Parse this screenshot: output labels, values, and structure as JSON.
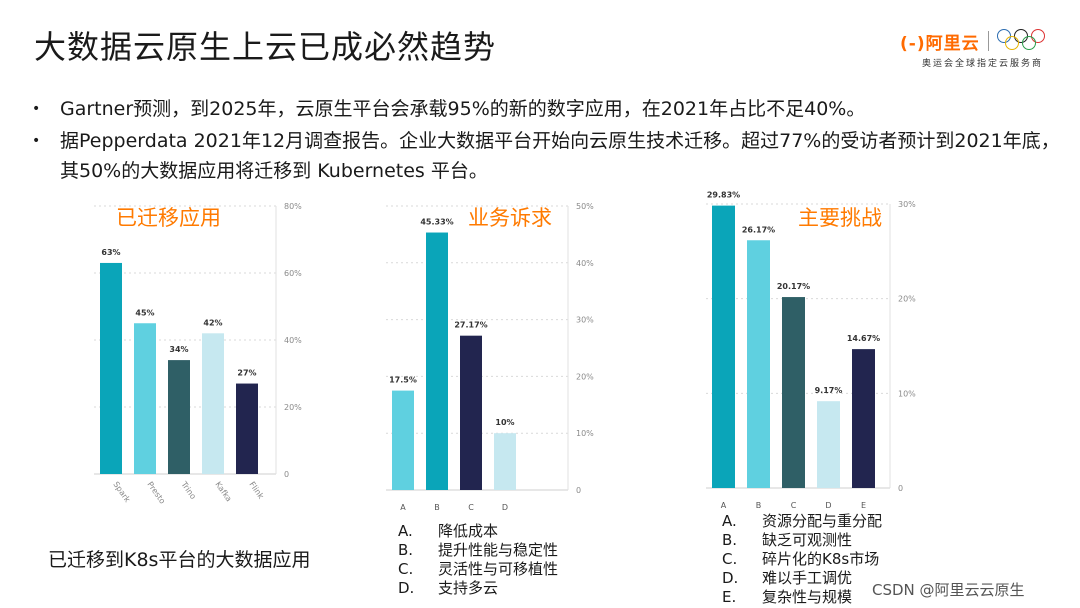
{
  "title": "大数据云原生上云已成必然趋势",
  "logo": {
    "brand": "阿里云",
    "subtitle": "奥运会全球指定云服务商"
  },
  "bullets": [
    "Gartner预测，到2025年，云原生平台会承载95%的新的数字应用，在2021年占比不足40%。",
    "据Pepperdata 2021年12月调查报告。企业大数据平台开始向云原生技术迁移。超过77%的受访者预计到2021年底，其50%的大数据应用将迁移到 Kubernetes 平台。"
  ],
  "chart_data": [
    {
      "type": "bar",
      "title": "已迁移应用",
      "categories": [
        "Spark",
        "Presto",
        "Trino",
        "Kafka",
        "Flink"
      ],
      "values": [
        63,
        45,
        34,
        42,
        27
      ],
      "labels": [
        "63%",
        "45%",
        "34%",
        "42%",
        "27%"
      ],
      "ticks": [
        "0",
        "20%",
        "40%",
        "60%",
        "80%"
      ],
      "ylim": [
        0,
        80
      ],
      "colors": [
        "#0aa5b9",
        "#5fd0e0",
        "#2f5f66",
        "#c6e8f0",
        "#22254f"
      ],
      "rotate_labels": true
    },
    {
      "type": "bar",
      "title": "业务诉求",
      "categories": [
        "A",
        "B",
        "C",
        "D"
      ],
      "values": [
        17.5,
        45.33,
        27.17,
        10
      ],
      "labels": [
        "17.5%",
        "45.33%",
        "27.17%",
        "10%"
      ],
      "ticks": [
        "0",
        "10%",
        "20%",
        "30%",
        "40%",
        "50%"
      ],
      "ylim": [
        0,
        50
      ],
      "colors": [
        "#5fd0e0",
        "#0aa5b9",
        "#22254f",
        "#c6e8f0"
      ],
      "rotate_labels": false
    },
    {
      "type": "bar",
      "title": "主要挑战",
      "categories": [
        "A",
        "B",
        "C",
        "D",
        "E"
      ],
      "values": [
        29.83,
        26.17,
        20.17,
        9.17,
        14.67
      ],
      "labels": [
        "29.83%",
        "26.17%",
        "20.17%",
        "9.17%",
        "14.67%"
      ],
      "ticks": [
        "0",
        "10%",
        "20%",
        "30%"
      ],
      "ylim": [
        0,
        30
      ],
      "colors": [
        "#0aa5b9",
        "#5fd0e0",
        "#2f5f66",
        "#c6e8f0",
        "#22254f"
      ],
      "rotate_labels": false
    }
  ],
  "legend2": [
    {
      "key": "A.",
      "text": "降低成本"
    },
    {
      "key": "B.",
      "text": "提升性能与稳定性"
    },
    {
      "key": "C.",
      "text": "灵活性与可移植性"
    },
    {
      "key": "D.",
      "text": "支持多云"
    }
  ],
  "legend3": [
    {
      "key": "A.",
      "text": "资源分配与重分配"
    },
    {
      "key": "B.",
      "text": "缺乏可观测性"
    },
    {
      "key": "C.",
      "text": "碎片化的K8s市场"
    },
    {
      "key": "D.",
      "text": "难以手工调优"
    },
    {
      "key": "E.",
      "text": "复杂性与规模"
    }
  ],
  "caption": "已迁移到K8s平台的大数据应用",
  "watermark": "CSDN @阿里云云原生"
}
